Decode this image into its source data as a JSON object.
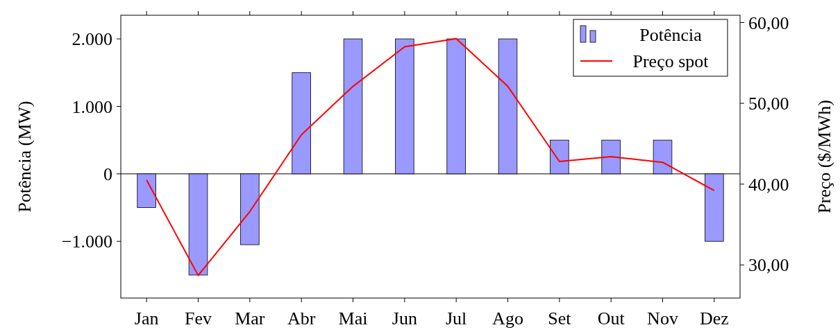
{
  "chart_data": {
    "type": "bar",
    "ylabel": "Potência (MW)",
    "y2label": "Preço ($/MWh)",
    "categories": [
      "Jan",
      "Fev",
      "Mar",
      "Abr",
      "Mai",
      "Jun",
      "Jul",
      "Ago",
      "Set",
      "Out",
      "Nov",
      "Dez"
    ],
    "series": [
      {
        "name": "Potência",
        "color": "#9999ff",
        "values": [
          -500,
          -1500,
          -1050,
          1500,
          2000,
          2000,
          2000,
          2000,
          500,
          500,
          500,
          -1000
        ]
      },
      {
        "name": "Preço spot",
        "type": "line",
        "axis": "y2",
        "color": "#ff0000",
        "values": [
          40.5,
          28.7,
          36.6,
          46.1,
          52.1,
          57.0,
          58.0,
          52.1,
          42.8,
          43.4,
          42.7,
          39.2
        ]
      }
    ],
    "ylim": [
      -1840,
      2350
    ],
    "yticks": [
      {
        "value": -1000,
        "label": "−1.000"
      },
      0,
      {
        "value": 1000,
        "label": "1.000"
      },
      {
        "value": 2000,
        "label": "2.000"
      }
    ],
    "y2lim": [
      25.9,
      60.9
    ],
    "y2ticks": [
      {
        "value": 30,
        "label": "30,00"
      },
      {
        "value": 40,
        "label": "40,00"
      },
      {
        "value": 50,
        "label": "50,00"
      },
      {
        "value": 60,
        "label": "60,00"
      }
    ],
    "ref_lines": [
      {
        "axis": "y",
        "value": 0,
        "color": "#000000"
      }
    ],
    "legend": "top right",
    "grid": false,
    "marker": "none",
    "line_style": "solid"
  }
}
